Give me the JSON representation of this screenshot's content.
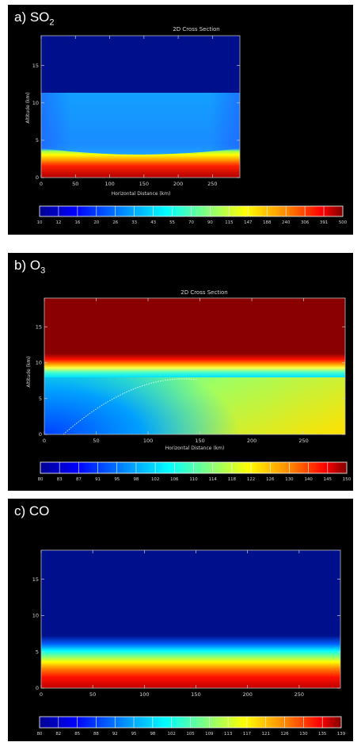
{
  "chart_data": [
    {
      "type": "heatmap",
      "panel_label": "a) SO",
      "panel_label_sub": "2",
      "title": "2D Cross Section",
      "xlabel": "Horizontal Distance (km)",
      "ylabel": "Altitude (km)",
      "xlim": [
        0,
        290
      ],
      "ylim": [
        0,
        19
      ],
      "xticks": [
        "0",
        "50",
        "100",
        "150",
        "200",
        "250"
      ],
      "yticks": [
        "0",
        "5",
        "10",
        "15"
      ],
      "colorbar_ticks": [
        "10",
        "12",
        "16",
        "20",
        "26",
        "33",
        "43",
        "55",
        "70",
        "90",
        "115",
        "147",
        "188",
        "240",
        "306",
        "391",
        "500"
      ],
      "field": {
        "top_altitude": 12,
        "above_top_value": 10,
        "column_value_range": [
          20,
          55
        ],
        "surface_layer_top_edges": 3.0,
        "surface_layer_top_center": 2.6,
        "surface_value": 500
      }
    },
    {
      "type": "heatmap",
      "panel_label": "b) O",
      "panel_label_sub": "3",
      "title": "2D Cross Section",
      "xlabel": "Horizontal Distance (km)",
      "ylabel": "Altitude (km)",
      "xlim": [
        0,
        290
      ],
      "ylim": [
        0,
        19
      ],
      "xticks": [
        "0",
        "50",
        "100",
        "150",
        "200",
        "250"
      ],
      "yticks": [
        "0",
        "5",
        "10",
        "15"
      ],
      "colorbar_ticks": [
        "80",
        "83",
        "87",
        "91",
        "95",
        "98",
        "102",
        "106",
        "110",
        "114",
        "118",
        "122",
        "126",
        "130",
        "140",
        "145",
        "150"
      ],
      "field": {
        "transition_altitude": 9.5,
        "upper_value": 150,
        "lower_value_range": [
          84,
          125
        ]
      }
    },
    {
      "type": "heatmap",
      "panel_label": "c) CO",
      "title": "",
      "xlabel": "",
      "ylabel": "",
      "xlim": [
        0,
        290
      ],
      "ylim": [
        0,
        19
      ],
      "xticks": [
        "0",
        "50",
        "100",
        "150",
        "200",
        "250"
      ],
      "yticks": [
        "0",
        "5",
        "10",
        "15"
      ],
      "colorbar_ticks": [
        "80",
        "82",
        "85",
        "88",
        "92",
        "95",
        "98",
        "102",
        "105",
        "109",
        "113",
        "117",
        "121",
        "126",
        "130",
        "135",
        "139"
      ],
      "field": {
        "upper_value": 80,
        "gradient_altitudes": [
          6.5,
          5.2,
          3.8,
          2.2,
          0
        ],
        "surface_value": 139
      }
    }
  ]
}
